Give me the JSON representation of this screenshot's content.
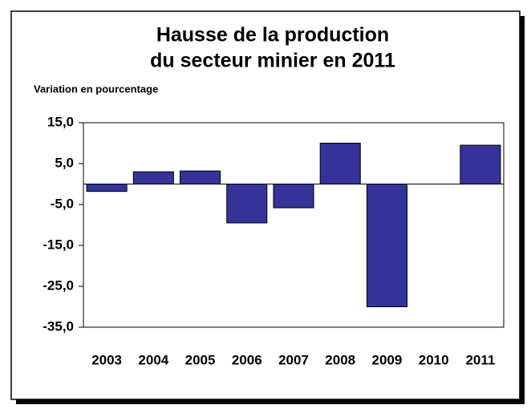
{
  "chart_data": {
    "type": "bar",
    "title": [
      "Hausse de la production",
      "du secteur minier en 2011"
    ],
    "y_label": "Variation en pourcentage",
    "categories": [
      "2003",
      "2004",
      "2005",
      "2006",
      "2007",
      "2008",
      "2009",
      "2010",
      "2011"
    ],
    "values": [
      -1.8,
      3.0,
      3.2,
      -9.5,
      -5.8,
      10.0,
      -30.0,
      0,
      9.5
    ],
    "color": "#333399",
    "ylim": [
      -35,
      15
    ],
    "yticks": [
      {
        "value": -35,
        "label": "-35,0"
      },
      {
        "value": -25,
        "label": "-25,0"
      },
      {
        "value": -15,
        "label": "-15,0"
      },
      {
        "value": -5,
        "label": "-5,0"
      },
      {
        "value": 5,
        "label": "5,0"
      },
      {
        "value": 15,
        "label": "15,0"
      }
    ],
    "grid": false
  }
}
